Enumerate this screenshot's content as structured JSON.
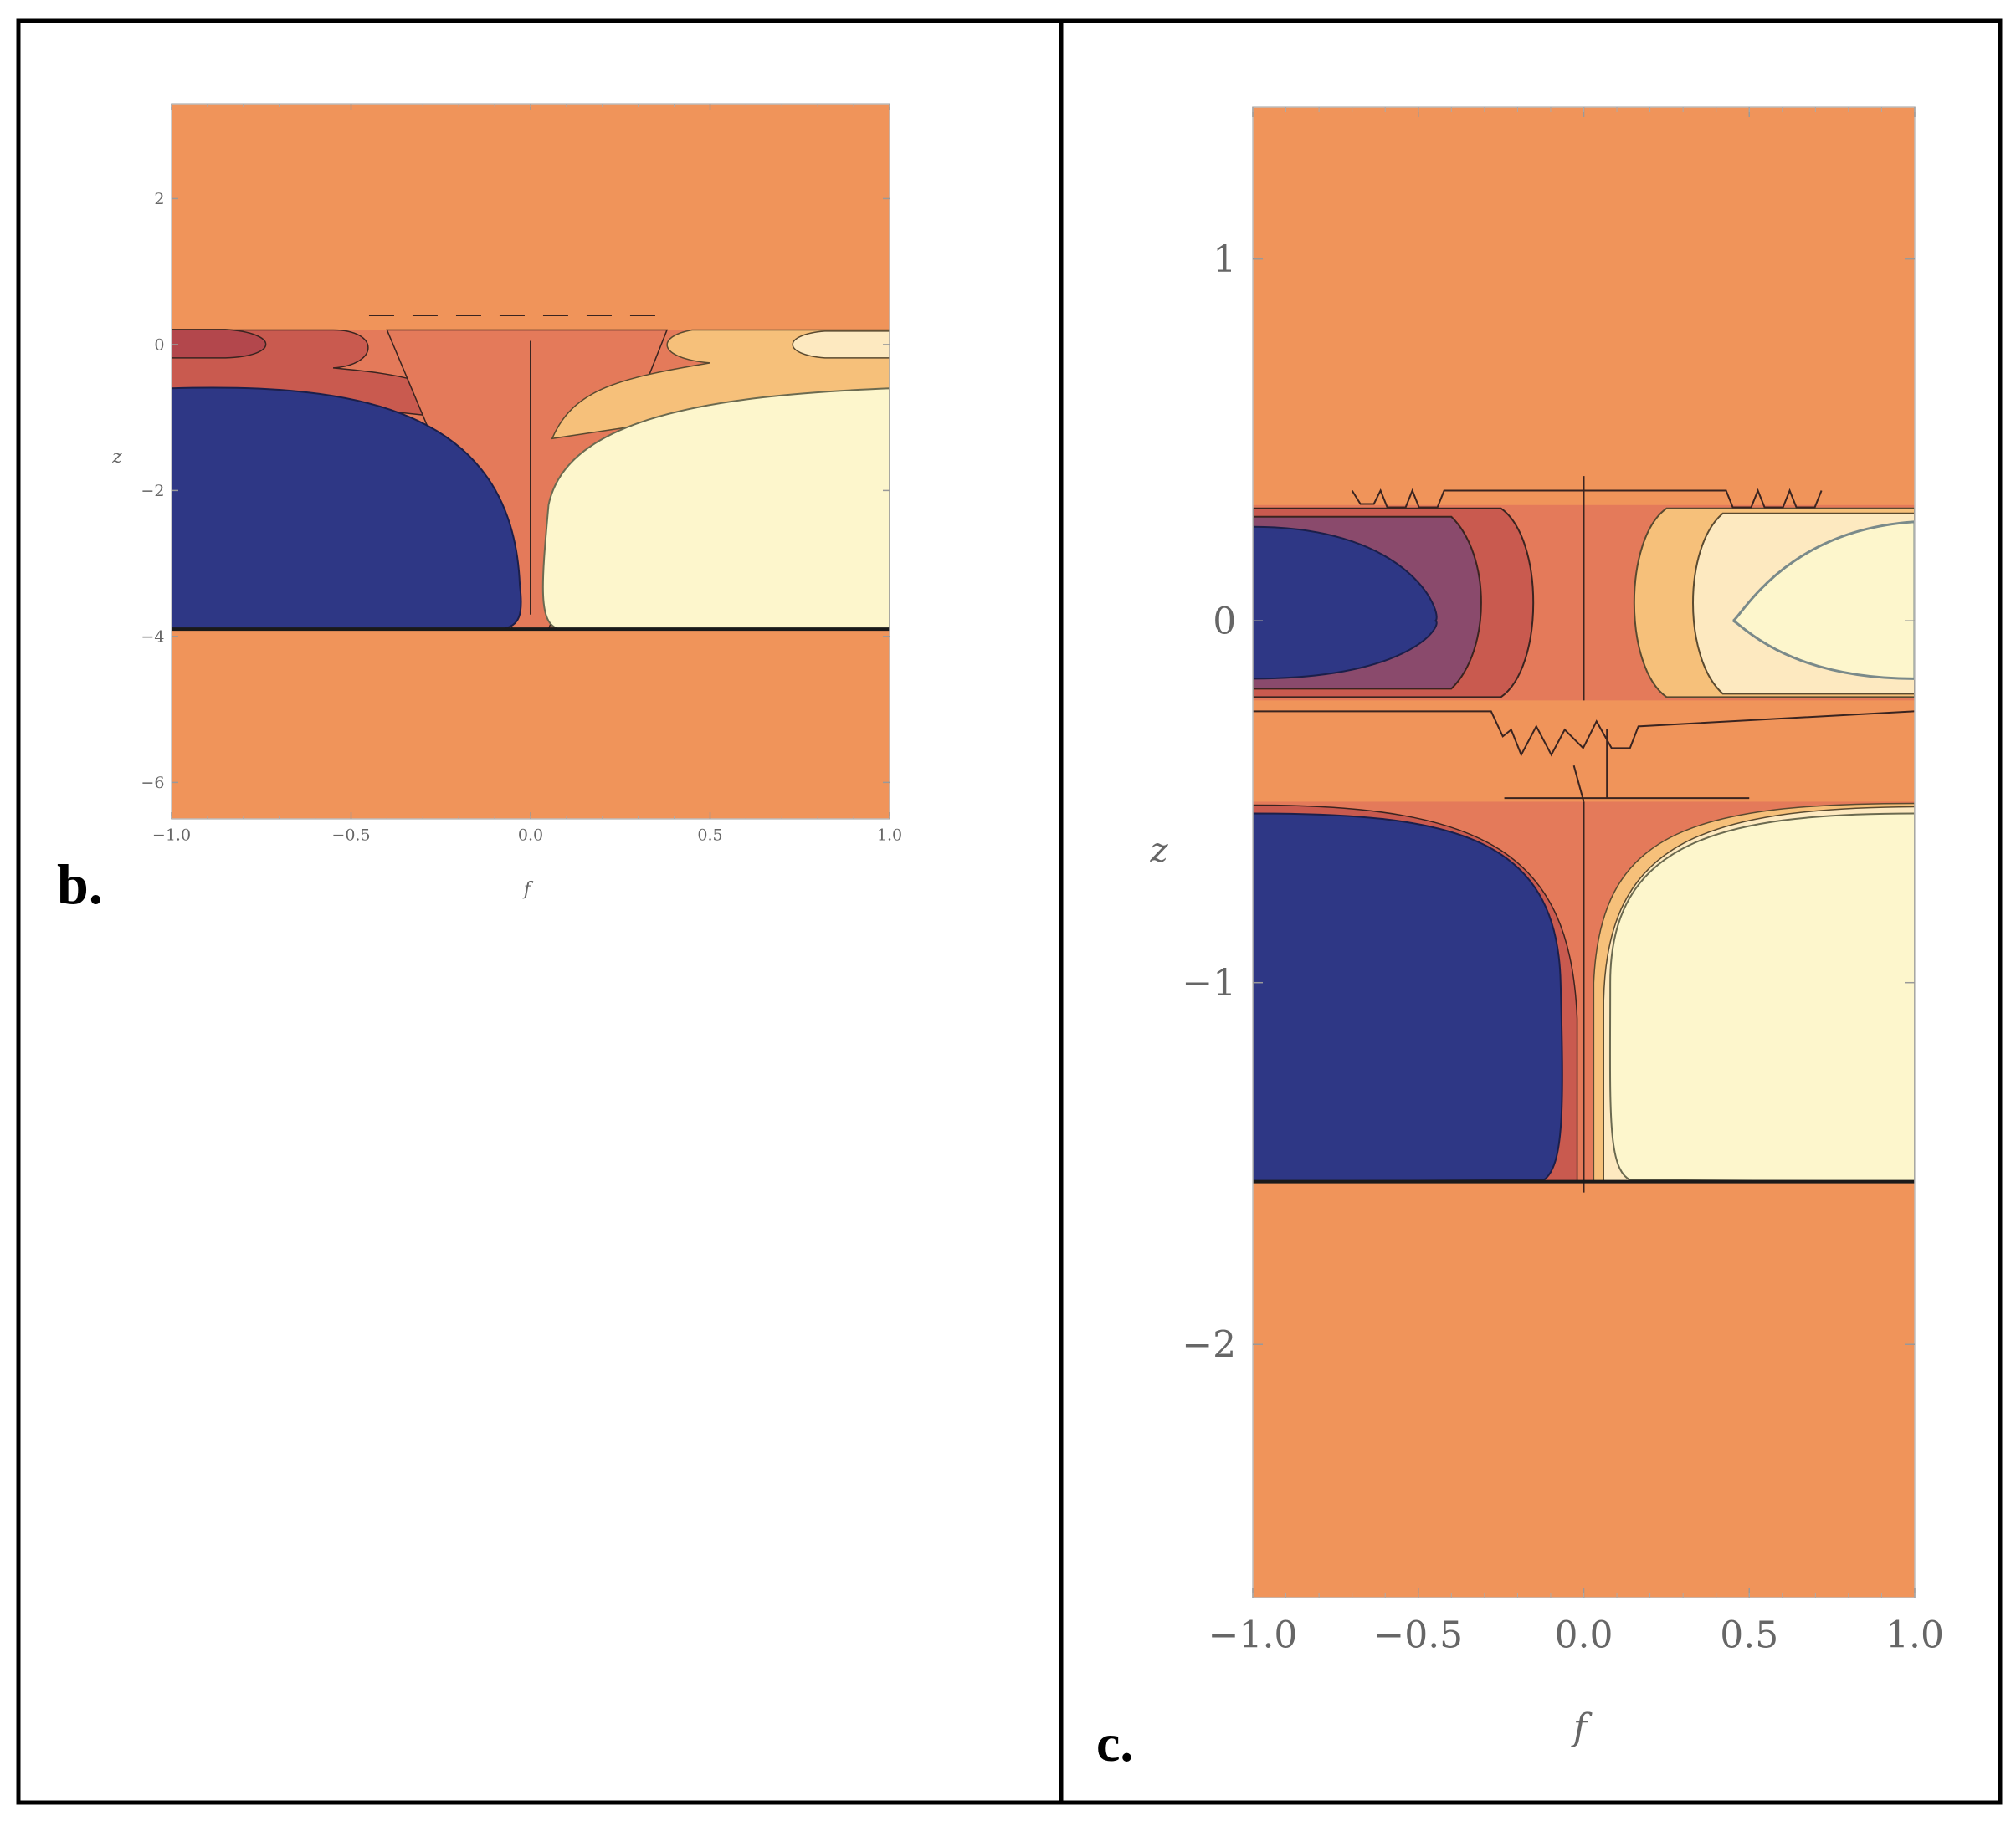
{
  "chart_data": [
    {
      "type": "heatmap",
      "panel_label": "b.",
      "xlabel": "f",
      "ylabel": "z",
      "xlim": [
        -1.0,
        1.0
      ],
      "ylim": [
        -6.5,
        3.3
      ],
      "xticks": [
        "-1.0",
        "-0.5",
        "0.0",
        "0.5",
        "1.0"
      ],
      "yticks": [
        "2",
        "0",
        "-2",
        "-4",
        "-6"
      ],
      "grid": false,
      "colors": {
        "background": "#f0945a",
        "deep_negative": "#2e3785",
        "negative_band": "#c95a4f",
        "dark_negative": "#b3474c",
        "central_lobe": "#e47a5a",
        "light_positive": "#fde9c0",
        "positive_band": "#f6c07a",
        "max_positive": "#fdf6cc"
      },
      "regions": {
        "layer_top_z": 0.2,
        "layer_bottom_z": -3.9,
        "blue_top_z": -0.6,
        "cream_top_z": -0.6
      }
    },
    {
      "type": "heatmap",
      "panel_label": "c.",
      "xlabel": "f",
      "ylabel": "z",
      "xlim": [
        -1.0,
        1.0
      ],
      "ylim": [
        -2.7,
        1.42
      ],
      "xticks": [
        "-1.0",
        "-0.5",
        "0.0",
        "0.5",
        "1.0"
      ],
      "yticks": [
        "1",
        "0",
        "-1",
        "-2"
      ],
      "grid": false,
      "colors": {
        "background": "#f0945a",
        "deep_negative": "#2e3785",
        "purple_band": "#8a4a6c",
        "negative_band": "#c95a4f",
        "central_lobe": "#e47a5a",
        "positive_band": "#f6c07a",
        "light_positive": "#fde9c0",
        "max_positive": "#fdf6cc"
      },
      "regions": {
        "upper_layer_top_z": 0.32,
        "upper_layer_bottom_z": -0.22,
        "lower_layer_top_z": -0.5,
        "lower_layer_bottom_z": -1.55
      }
    }
  ]
}
